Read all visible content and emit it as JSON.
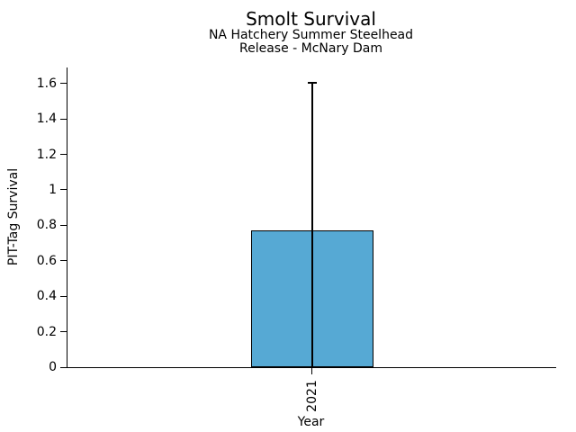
{
  "chart_data": {
    "type": "bar",
    "title": "Smolt Survival",
    "subtitle_lines": [
      "NA Hatchery Summer Steelhead",
      "Release - McNary Dam"
    ],
    "xlabel": "Year",
    "ylabel": "PIT-Tag Survival",
    "categories": [
      "2021"
    ],
    "values": [
      0.77
    ],
    "error_upper": [
      1.61
    ],
    "error_lower": [
      0
    ],
    "ytick_labels": [
      "0",
      "0.2",
      "0.4",
      "0.6",
      "0.8",
      "1",
      "1.2",
      "1.4",
      "1.6"
    ],
    "ytick_values": [
      0,
      0.2,
      0.4,
      0.6,
      0.8,
      1,
      1.2,
      1.4,
      1.6
    ],
    "ylim": [
      0,
      1.69
    ],
    "grid": false,
    "legend_position": "none",
    "bar_color": "#56a9d4",
    "bar_edge_color": "#000000",
    "errorbar_color": "#000000",
    "axis_color": "#000000",
    "background_color": "#ffffff"
  }
}
